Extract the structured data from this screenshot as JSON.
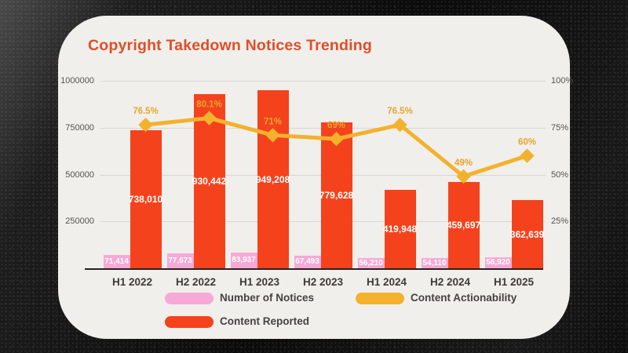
{
  "title": "Copyright Takedown Notices Trending",
  "chart_data": {
    "type": "bar",
    "subtype": "grouped-bar-with-line-overlay",
    "categories": [
      "H1 2022",
      "H2 2022",
      "H1 2023",
      "H2 2023",
      "H1 2024",
      "H2 2024",
      "H1 2025"
    ],
    "series": [
      {
        "name": "Number of Notices",
        "type": "bar",
        "axis": "left",
        "values": [
          71414,
          77673,
          83937,
          67493,
          56210,
          54110,
          58920
        ],
        "labels": [
          "71,414",
          "77,673",
          "83,937",
          "67,493",
          "56,210",
          "54,110",
          "58,920"
        ]
      },
      {
        "name": "Content Reported",
        "type": "bar",
        "axis": "left",
        "values": [
          738010,
          930442,
          949208,
          779628,
          419948,
          459697,
          362639
        ],
        "labels": [
          "738,010",
          "930,442",
          "949,208",
          "779,628",
          "419,948",
          "459,697",
          "362,639"
        ]
      },
      {
        "name": "Content Actionability",
        "type": "line",
        "axis": "right",
        "values": [
          76.5,
          80.1,
          71,
          69,
          76.5,
          49,
          60
        ],
        "labels": [
          "76.5%",
          "80.1%",
          "71%",
          "69%",
          "76.5%",
          "49%",
          "60%"
        ]
      }
    ],
    "left_axis": {
      "ticks": [
        "1000000",
        "750000",
        "500000",
        "250000"
      ],
      "min": 0,
      "max": 1000000
    },
    "right_axis": {
      "ticks": [
        "100%",
        "75%",
        "50%",
        "25%"
      ],
      "min": 0,
      "max": 100
    },
    "grid": true,
    "legend_position": "bottom"
  },
  "legend": {
    "notices": "Number of Notices",
    "actionability": "Content Actionability",
    "reported": "Content Reported"
  },
  "colors": {
    "background": "#0b0b0b",
    "card": "#f0efec",
    "title": "#e04e28",
    "bar_reported": "#f4431c",
    "bar_notices": "#f6a9d6",
    "line_actionability": "#f3b22d",
    "percent_label": "#e8a52e",
    "bar_value_text": "#ffffff",
    "axis_text": "#55524e",
    "category_text": "#3d3a37",
    "legend_text": "#454240",
    "gridline": "#d8d7d3",
    "baseline": "#26231f"
  }
}
